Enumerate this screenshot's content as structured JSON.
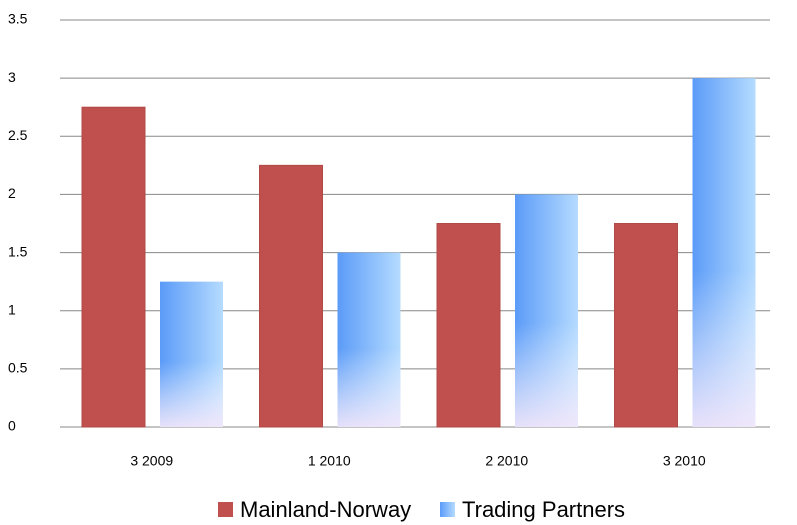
{
  "chart_data": {
    "type": "bar",
    "categories": [
      "3 2009",
      "1 2010",
      "2 2010",
      "3 2010"
    ],
    "series": [
      {
        "name": "Mainland-Norway",
        "color": "#c0504d",
        "values": [
          2.75,
          2.25,
          1.75,
          1.75
        ]
      },
      {
        "name": "Trading Partners",
        "color": "#5b9bf8",
        "values": [
          1.25,
          1.5,
          2,
          3
        ]
      }
    ],
    "ylim": [
      0,
      3.5
    ],
    "yticks": [
      0,
      0.5,
      1,
      1.5,
      2,
      2.5,
      3,
      3.5
    ],
    "grid": true,
    "legend": "bottom"
  }
}
